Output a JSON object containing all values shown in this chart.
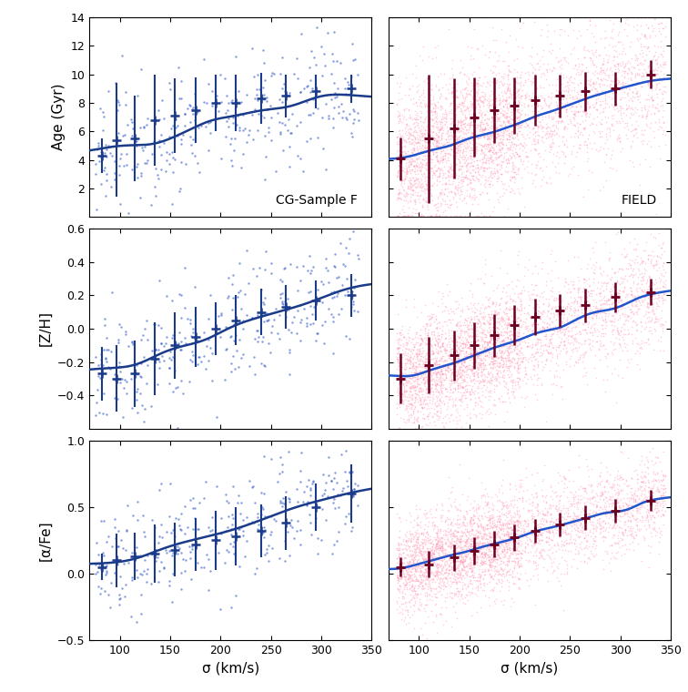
{
  "xlim": [
    70,
    350
  ],
  "x_ticks": [
    100,
    150,
    200,
    250,
    300,
    350
  ],
  "xlabel": "σ (km/s)",
  "age_ylim": [
    0,
    14
  ],
  "age_yticks": [
    2,
    4,
    6,
    8,
    10,
    12,
    14
  ],
  "age_ylabel": "Age (Gyr)",
  "zh_ylim": [
    -0.6,
    0.6
  ],
  "zh_yticks": [
    -0.4,
    -0.2,
    0.0,
    0.2,
    0.4,
    0.6
  ],
  "zh_ylabel": "[Z/H]",
  "afe_ylim": [
    -0.5,
    1.0
  ],
  "afe_yticks": [
    -0.5,
    0.0,
    0.5,
    1.0
  ],
  "afe_ylabel": "[α/Fe]",
  "gc_label": "CG-Sample F",
  "field_label": "FIELD",
  "gc_dot_color": "#4466cc",
  "gc_line_color": "#1a3a8a",
  "gc_errbar_color": "#1a3a8a",
  "field_dot_color": "#ff88aa",
  "field_line_color": "#2255cc",
  "field_errbar_color": "#6b0020",
  "seed_gc": 42,
  "seed_field": 7,
  "n_gc": 350,
  "n_field": 2500,
  "gc_age_errbar_x": [
    82,
    97,
    115,
    135,
    155,
    175,
    195,
    215,
    240,
    265,
    295,
    330
  ],
  "gc_age_errbar_y": [
    4.3,
    5.4,
    5.5,
    6.8,
    7.1,
    7.5,
    8.0,
    8.0,
    8.3,
    8.5,
    8.8,
    9.0
  ],
  "gc_age_errbar_lo": [
    1.2,
    4.0,
    3.0,
    3.2,
    2.6,
    2.3,
    2.0,
    2.0,
    1.8,
    1.5,
    1.2,
    1.0
  ],
  "gc_age_errbar_hi": [
    1.2,
    4.0,
    3.0,
    3.2,
    2.6,
    2.3,
    2.0,
    2.0,
    1.8,
    1.5,
    1.2,
    1.0
  ],
  "gc_zh_errbar_x": [
    82,
    97,
    115,
    135,
    155,
    175,
    195,
    215,
    240,
    265,
    295,
    330
  ],
  "gc_zh_errbar_y": [
    -0.27,
    -0.3,
    -0.27,
    -0.18,
    -0.1,
    -0.05,
    0.0,
    0.05,
    0.1,
    0.13,
    0.17,
    0.2
  ],
  "gc_zh_errbar_lo": [
    0.16,
    0.2,
    0.2,
    0.22,
    0.2,
    0.18,
    0.16,
    0.15,
    0.14,
    0.13,
    0.12,
    0.13
  ],
  "gc_zh_errbar_hi": [
    0.16,
    0.2,
    0.2,
    0.22,
    0.2,
    0.18,
    0.16,
    0.15,
    0.14,
    0.13,
    0.12,
    0.13
  ],
  "gc_afe_errbar_x": [
    82,
    97,
    115,
    135,
    155,
    175,
    195,
    215,
    240,
    265,
    295,
    330
  ],
  "gc_afe_errbar_y": [
    0.05,
    0.1,
    0.13,
    0.15,
    0.18,
    0.22,
    0.25,
    0.28,
    0.32,
    0.38,
    0.5,
    0.6
  ],
  "gc_afe_errbar_lo": [
    0.1,
    0.2,
    0.18,
    0.22,
    0.2,
    0.2,
    0.22,
    0.22,
    0.2,
    0.2,
    0.18,
    0.22
  ],
  "gc_afe_errbar_hi": [
    0.1,
    0.2,
    0.18,
    0.22,
    0.2,
    0.2,
    0.22,
    0.22,
    0.2,
    0.2,
    0.18,
    0.22
  ],
  "fd_age_errbar_x": [
    82,
    110,
    135,
    155,
    175,
    195,
    215,
    240,
    265,
    295,
    330
  ],
  "fd_age_errbar_y": [
    4.1,
    5.5,
    6.2,
    7.0,
    7.5,
    7.8,
    8.2,
    8.5,
    8.8,
    9.0,
    10.0
  ],
  "fd_age_errbar_lo": [
    1.5,
    4.5,
    3.5,
    2.8,
    2.3,
    2.0,
    1.8,
    1.5,
    1.4,
    1.2,
    1.0
  ],
  "fd_age_errbar_hi": [
    1.5,
    4.5,
    3.5,
    2.8,
    2.3,
    2.0,
    1.8,
    1.5,
    1.4,
    1.2,
    1.0
  ],
  "fd_zh_errbar_x": [
    82,
    110,
    135,
    155,
    175,
    195,
    215,
    240,
    265,
    295,
    330
  ],
  "fd_zh_errbar_y": [
    -0.3,
    -0.22,
    -0.16,
    -0.1,
    -0.04,
    0.02,
    0.07,
    0.11,
    0.14,
    0.19,
    0.22
  ],
  "fd_zh_errbar_lo": [
    0.15,
    0.17,
    0.15,
    0.14,
    0.13,
    0.12,
    0.11,
    0.1,
    0.1,
    0.09,
    0.08
  ],
  "fd_zh_errbar_hi": [
    0.15,
    0.17,
    0.15,
    0.14,
    0.13,
    0.12,
    0.11,
    0.1,
    0.1,
    0.09,
    0.08
  ],
  "fd_afe_errbar_x": [
    82,
    110,
    135,
    155,
    175,
    195,
    215,
    240,
    265,
    295,
    330
  ],
  "fd_afe_errbar_y": [
    0.05,
    0.07,
    0.12,
    0.17,
    0.22,
    0.27,
    0.32,
    0.37,
    0.42,
    0.47,
    0.55
  ],
  "fd_afe_errbar_lo": [
    0.07,
    0.1,
    0.1,
    0.1,
    0.1,
    0.1,
    0.09,
    0.09,
    0.09,
    0.09,
    0.08
  ],
  "fd_afe_errbar_hi": [
    0.07,
    0.1,
    0.1,
    0.1,
    0.1,
    0.1,
    0.09,
    0.09,
    0.09,
    0.09,
    0.08
  ]
}
